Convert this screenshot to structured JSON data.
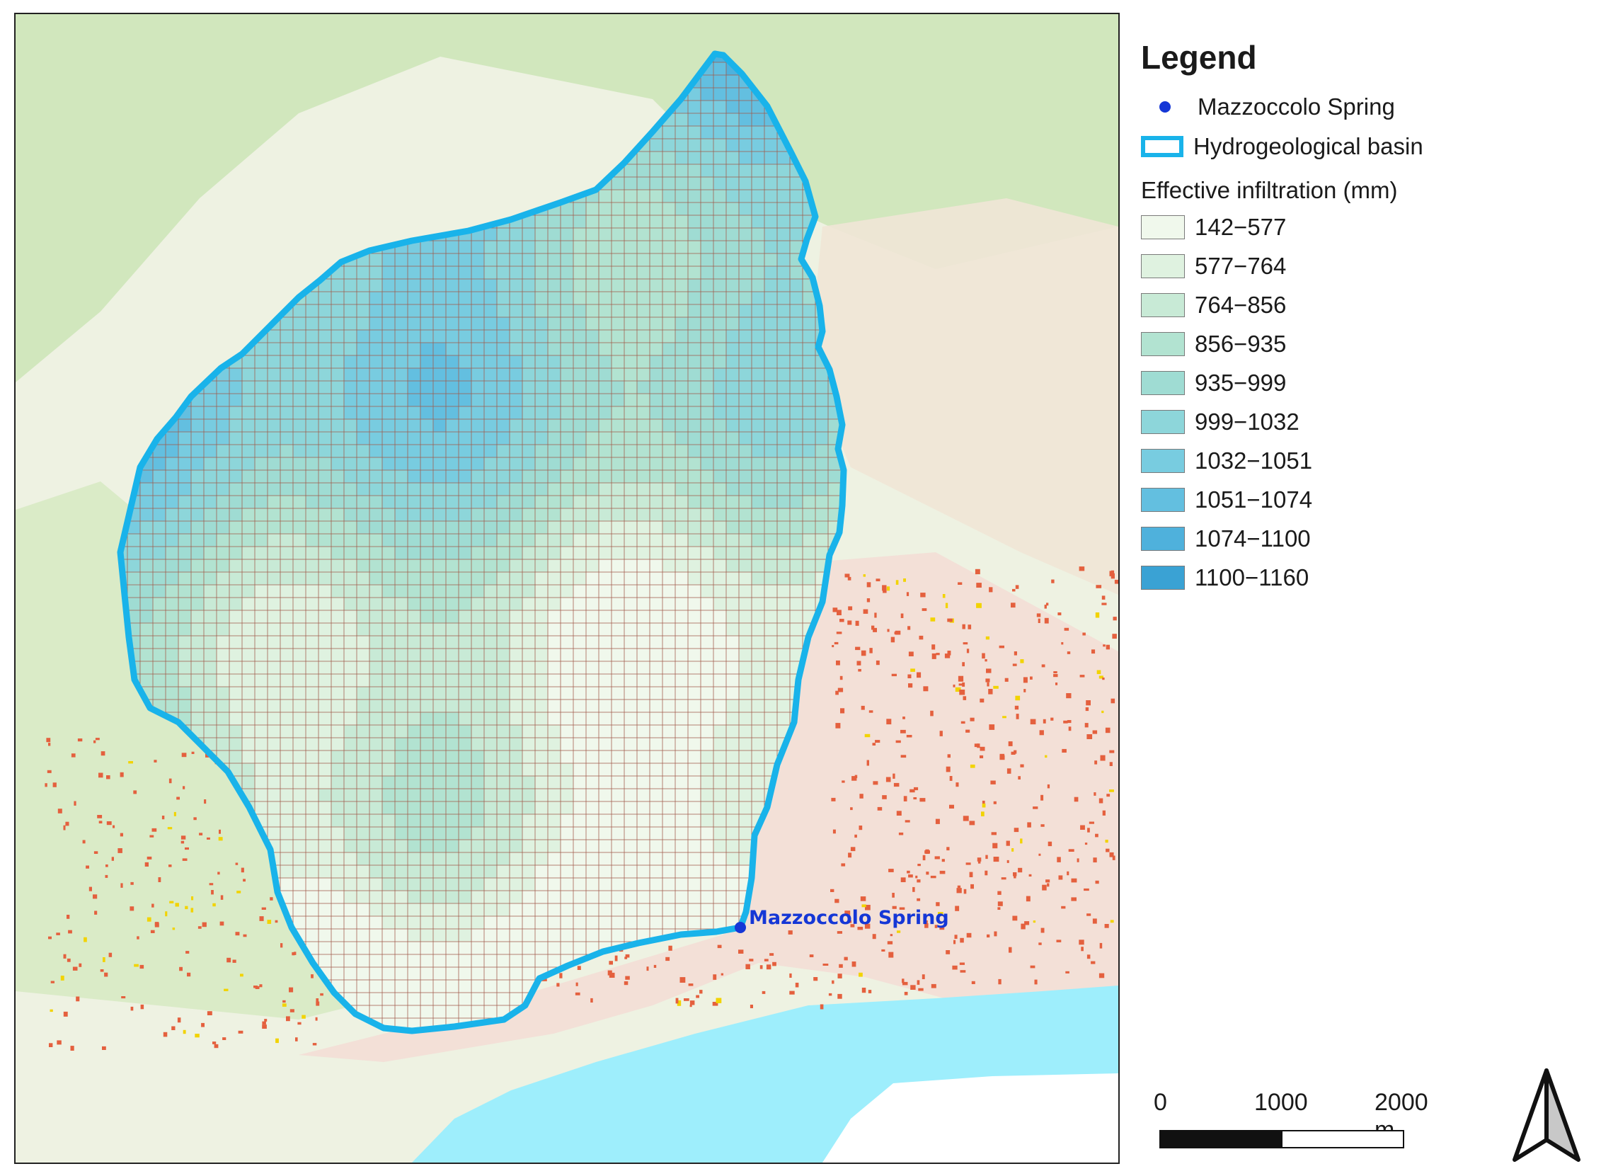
{
  "legend": {
    "title": "Legend",
    "spring_label": "Mazzoccolo Spring",
    "basin_label": "Hydrogeological basin",
    "section_title": "Effective infiltration (mm)",
    "classes": [
      {
        "label": "142−577",
        "color": "#f0f8ec"
      },
      {
        "label": "577−764",
        "color": "#dff2e0"
      },
      {
        "label": "764−856",
        "color": "#c8ead6"
      },
      {
        "label": "856−935",
        "color": "#b2e3d1"
      },
      {
        "label": "935−999",
        "color": "#9fdcd3"
      },
      {
        "label": "999−1032",
        "color": "#8dd6da"
      },
      {
        "label": "1032−1051",
        "color": "#78cce0"
      },
      {
        "label": "1051−1074",
        "color": "#63bfe0"
      },
      {
        "label": "1074−1100",
        "color": "#4fb1dc"
      },
      {
        "label": "1100−1160",
        "color": "#3aa2d4"
      }
    ],
    "spring_color": "#1537d6",
    "basin_color": "#19b3ea"
  },
  "map": {
    "spring_label": "Mazzoccolo Spring",
    "spring_label_color": "#1537d6",
    "sea_color": "#9eeefc",
    "grid_line_color": "#a05a4a"
  },
  "scale_bar": {
    "labels": [
      "0",
      "1000",
      "2000 m"
    ]
  },
  "icons": {
    "north_arrow": "north-arrow-icon"
  }
}
